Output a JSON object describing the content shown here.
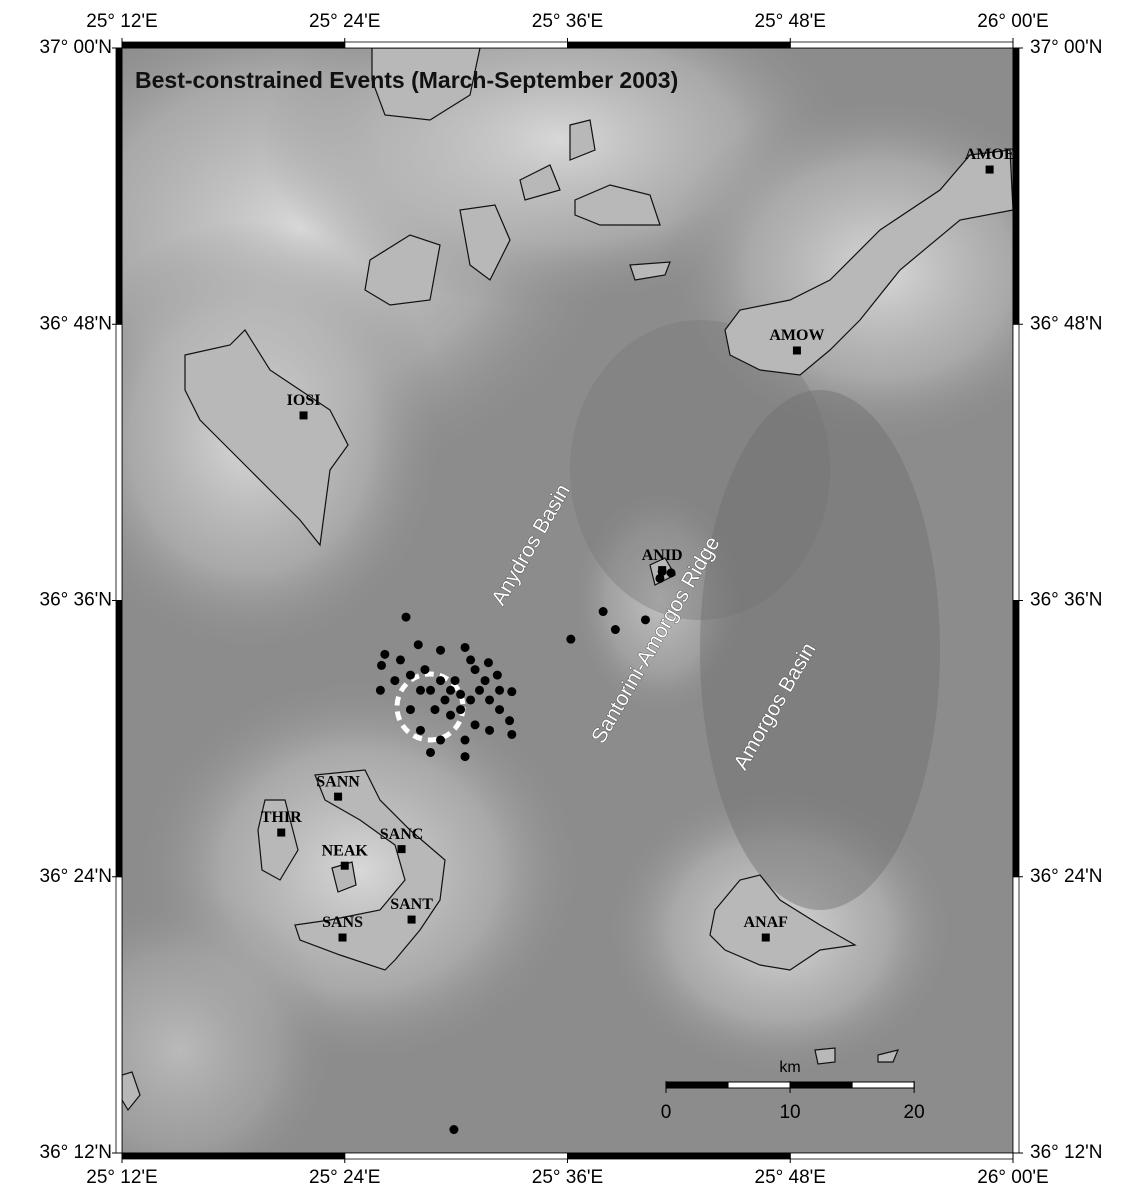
{
  "map": {
    "title": "Best-constrained Events (March-September 2003)",
    "xlim": [
      25.2,
      26.0
    ],
    "ylim": [
      36.2,
      37.0
    ],
    "xticks": [
      {
        "value": 25.2,
        "label": "25° 12'E"
      },
      {
        "value": 25.4,
        "label": "25° 24'E"
      },
      {
        "value": 25.6,
        "label": "25° 36'E"
      },
      {
        "value": 25.8,
        "label": "25° 48'E"
      },
      {
        "value": 26.0,
        "label": "26° 00'E"
      }
    ],
    "yticks": [
      {
        "value": 37.0,
        "label": "37° 00'N"
      },
      {
        "value": 36.8,
        "label": "36° 48'N"
      },
      {
        "value": 36.6,
        "label": "36° 36'N"
      },
      {
        "value": 36.4,
        "label": "36° 24'N"
      },
      {
        "value": 36.2,
        "label": "36° 12'N"
      }
    ],
    "stations": [
      {
        "name": "AMOE",
        "lon": 25.979,
        "lat": 36.912
      },
      {
        "name": "AMOW",
        "lon": 25.806,
        "lat": 36.781
      },
      {
        "name": "IOSI",
        "lon": 25.363,
        "lat": 36.734
      },
      {
        "name": "ANID",
        "lon": 25.685,
        "lat": 36.622
      },
      {
        "name": "SANN",
        "lon": 25.394,
        "lat": 36.458
      },
      {
        "name": "THIR",
        "lon": 25.343,
        "lat": 36.432
      },
      {
        "name": "SANC",
        "lon": 25.451,
        "lat": 36.42
      },
      {
        "name": "NEAK",
        "lon": 25.4,
        "lat": 36.408
      },
      {
        "name": "SANT",
        "lon": 25.46,
        "lat": 36.369
      },
      {
        "name": "SANS",
        "lon": 25.398,
        "lat": 36.356
      },
      {
        "name": "ANAF",
        "lon": 25.778,
        "lat": 36.356
      }
    ],
    "features": [
      {
        "text": "Anydros Basin",
        "lon": 25.568,
        "lat": 36.64
      },
      {
        "text": "Santorini-Amorgos Ridge",
        "lon": 25.68,
        "lat": 36.571
      },
      {
        "text": "Amorgos Basin",
        "lon": 25.787,
        "lat": 36.523
      }
    ],
    "events": {
      "lon": [
        25.455,
        25.436,
        25.433,
        25.45,
        25.466,
        25.486,
        25.508,
        25.513,
        25.529,
        25.537,
        25.55,
        25.432,
        25.445,
        25.459,
        25.472,
        25.477,
        25.49,
        25.495,
        25.499,
        25.504,
        25.513,
        25.521,
        25.53,
        25.539,
        25.548,
        25.55,
        25.53,
        25.517,
        25.508,
        25.508,
        25.486,
        25.477,
        25.468,
        25.459,
        25.481,
        25.495,
        25.504,
        25.468,
        25.486,
        25.526,
        25.517,
        25.539,
        25.603,
        25.632,
        25.643,
        25.67,
        25.683,
        25.685,
        25.693,
        25.498
      ],
      "lat": [
        36.588,
        36.561,
        36.553,
        36.557,
        36.568,
        36.564,
        36.566,
        36.557,
        36.555,
        36.546,
        36.534,
        36.535,
        36.542,
        36.546,
        36.55,
        36.535,
        36.528,
        36.535,
        36.542,
        36.532,
        36.528,
        36.535,
        36.528,
        36.521,
        36.513,
        36.503,
        36.506,
        36.51,
        36.499,
        36.487,
        36.499,
        36.49,
        36.506,
        36.521,
        36.521,
        36.517,
        36.521,
        36.535,
        36.542,
        36.542,
        36.55,
        36.535,
        36.572,
        36.592,
        36.579,
        36.586,
        36.616,
        36.621,
        36.62,
        36.217
      ]
    },
    "scale_bar": {
      "unit": "km",
      "ticks": [
        0,
        10,
        20
      ]
    }
  }
}
